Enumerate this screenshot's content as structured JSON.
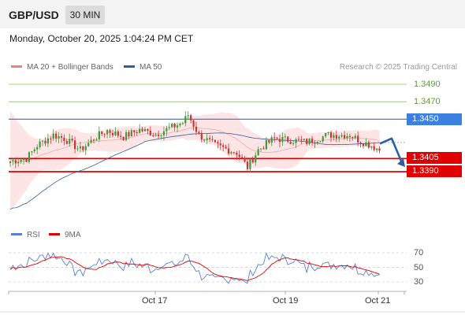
{
  "header": {
    "symbol": "GBP/USD",
    "timeframe": "30 MIN"
  },
  "timestamp": "Monday, October 20, 2025 1:04:24 PM CET",
  "legend": {
    "bollinger": "MA 20 + Bollinger Bands",
    "ma50": "MA 50",
    "rsi": "RSI",
    "rsi_ma": "9MA"
  },
  "copyright": "Research © 2025 Trading Central",
  "colors": {
    "bull_candle": "#3e9a3e",
    "bear_candle": "#cc3333",
    "bollinger_fill": "#fde0e0",
    "bollinger_line": "#f08080",
    "ma50": "#2f5fa0",
    "pivot": "#3b7fe0",
    "support": "#e00000",
    "resistance": "#8cc63f",
    "rsi": "#5b7fd6",
    "rsi_ma": "#e00000",
    "forecast_arrow": "#2f5fa0"
  },
  "levels": [
    {
      "label": "1.3490",
      "kind": "resistance"
    },
    {
      "label": "1.3470",
      "kind": "resistance"
    },
    {
      "label": "1.3450",
      "kind": "pivot"
    },
    {
      "label": "1.3405",
      "kind": "support"
    },
    {
      "label": "1.3390",
      "kind": "support"
    }
  ],
  "rsi_levels": [
    "70",
    "50",
    "30"
  ],
  "x_labels": [
    "Oct 17",
    "Oct 19",
    "Oct 21"
  ],
  "chart_data": [
    {
      "type": "candlestick",
      "xlabel": "",
      "ylabel": "",
      "ylim": [
        1.335,
        1.3505
      ],
      "price_levels": [
        1.349,
        1.347,
        1.345,
        1.3405,
        1.339
      ],
      "close_anchors": [
        [
          0,
          1.3402
        ],
        [
          6,
          1.3405
        ],
        [
          10,
          1.342
        ],
        [
          16,
          1.3432
        ],
        [
          20,
          1.3428
        ],
        [
          26,
          1.3415
        ],
        [
          32,
          1.343
        ],
        [
          36,
          1.3437
        ],
        [
          42,
          1.343
        ],
        [
          48,
          1.3438
        ],
        [
          54,
          1.3433
        ],
        [
          60,
          1.3441
        ],
        [
          64,
          1.3446
        ],
        [
          66,
          1.3455
        ],
        [
          70,
          1.3432
        ],
        [
          76,
          1.342
        ],
        [
          84,
          1.3412
        ],
        [
          88,
          1.3395
        ],
        [
          92,
          1.3415
        ],
        [
          98,
          1.3428
        ],
        [
          104,
          1.3426
        ],
        [
          110,
          1.3424
        ],
        [
          118,
          1.3432
        ],
        [
          126,
          1.3432
        ],
        [
          130,
          1.3425
        ],
        [
          134,
          1.342
        ],
        [
          137,
          1.3415
        ]
      ],
      "forecast": [
        1.3422,
        1.3428,
        1.3398
      ]
    },
    {
      "type": "line",
      "series": [
        {
          "name": "RSI"
        },
        {
          "name": "9MA"
        }
      ],
      "ylim": [
        20,
        80
      ],
      "y_ticks": [
        70,
        50,
        30
      ]
    }
  ]
}
